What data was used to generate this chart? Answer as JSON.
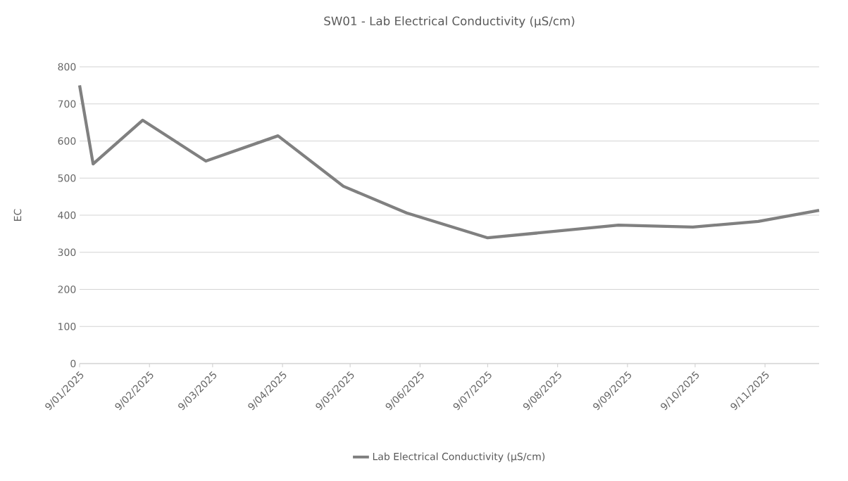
{
  "chart_data": {
    "type": "line",
    "title": "SW01 - Lab Electrical Conductivity (µS/cm)",
    "ylabel": "EC",
    "x": [
      "2025-01-09",
      "2025-01-15",
      "2025-02-06",
      "2025-03-06",
      "2025-04-07",
      "2025-05-06",
      "2025-06-03",
      "2025-07-09",
      "2025-09-05",
      "2025-10-08",
      "2025-11-06",
      "2025-12-03"
    ],
    "series": [
      {
        "name": "Lab Electrical Conductivity (µS/cm)",
        "color": "#808080",
        "values": [
          750,
          538,
          656,
          546,
          614,
          478,
          406,
          339,
          373,
          368,
          383,
          413
        ]
      }
    ],
    "xlim": [
      "2025-01-09",
      "2025-12-03"
    ],
    "xticks": [
      {
        "value": "2025-01-09",
        "label": "9/01/2025"
      },
      {
        "value": "2025-02-09",
        "label": "9/02/2025"
      },
      {
        "value": "2025-03-09",
        "label": "9/03/2025"
      },
      {
        "value": "2025-04-09",
        "label": "9/04/2025"
      },
      {
        "value": "2025-05-09",
        "label": "9/05/2025"
      },
      {
        "value": "2025-06-09",
        "label": "9/06/2025"
      },
      {
        "value": "2025-07-09",
        "label": "9/07/2025"
      },
      {
        "value": "2025-08-09",
        "label": "9/08/2025"
      },
      {
        "value": "2025-09-09",
        "label": "9/09/2025"
      },
      {
        "value": "2025-10-09",
        "label": "9/10/2025"
      },
      {
        "value": "2025-11-09",
        "label": "9/11/2025"
      }
    ],
    "ylim": [
      0,
      800
    ],
    "yticks": [
      0,
      100,
      200,
      300,
      400,
      500,
      600,
      700,
      800
    ],
    "grid": "y",
    "legend": "bottom",
    "line_style": "solid"
  }
}
